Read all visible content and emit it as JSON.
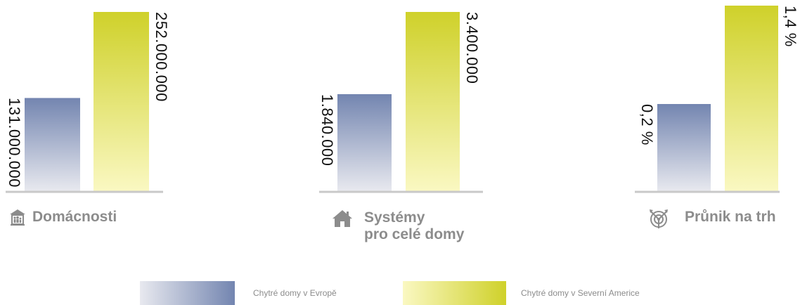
{
  "chart_data": {
    "type": "bar",
    "series": [
      {
        "name": "Chytré domy v Evropě",
        "color_light": "#e8e9ef",
        "color_dark": "#7385b0"
      },
      {
        "name": "Chytré domy v Severní Americe",
        "color_light": "#faf8c2",
        "color_dark": "#cfd12a"
      }
    ],
    "panels": [
      {
        "category": "Domácnosti",
        "icon": "household-icon",
        "values": [
          131000000,
          252000000
        ],
        "labels": [
          "131.000.000",
          "252.000.000"
        ]
      },
      {
        "category": "Systémy\npro celé domy",
        "icon": "house-icon",
        "values": [
          1840000,
          3400000
        ],
        "labels": [
          "1.840.000",
          "3.400.000"
        ]
      },
      {
        "category": "Průnik na trh",
        "icon": "target-arrows-icon",
        "values": [
          0.2,
          1.4
        ],
        "labels": [
          "0,2 %",
          "1,4 %"
        ]
      }
    ],
    "grid": false,
    "legend_position": "bottom"
  },
  "axis_color": "#c9c9c9",
  "category_color": "#8c8c8c"
}
